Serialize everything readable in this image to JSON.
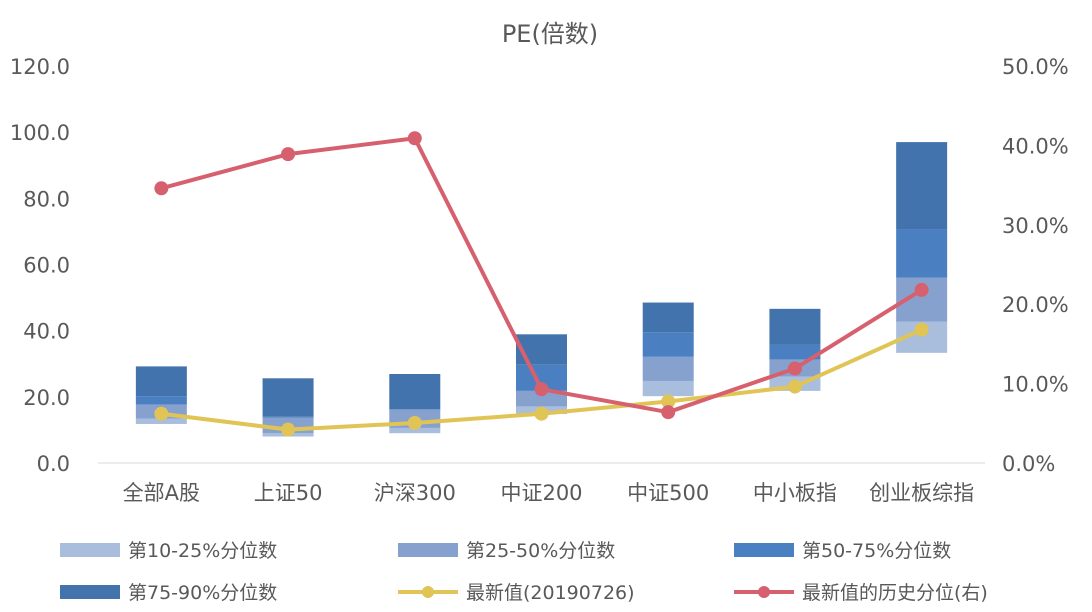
{
  "chart_data": {
    "type": "bar",
    "title": "PE(倍数)",
    "categories": [
      "全部A股",
      "上证50",
      "沪深300",
      "中证200",
      "中证500",
      "中小板指",
      "创业板综指"
    ],
    "y_left": {
      "min": 0,
      "max": 120,
      "step": 20,
      "ticks": [
        "0.0",
        "20.0",
        "40.0",
        "60.0",
        "80.0",
        "100.0",
        "120.0"
      ]
    },
    "y_right": {
      "min": 0,
      "max": 50,
      "step": 10,
      "ticks": [
        "0.0%",
        "10.0%",
        "20.0%",
        "30.0%",
        "40.0%",
        "50.0%"
      ]
    },
    "percentile_bands": {
      "p10": [
        11.8,
        8.0,
        9.0,
        14.8,
        20.2,
        21.8,
        33.3
      ],
      "p25": [
        13.4,
        9.0,
        10.6,
        17.1,
        24.8,
        26.1,
        42.7
      ],
      "p50": [
        17.7,
        13.7,
        16.1,
        21.8,
        32.1,
        31.3,
        56.0
      ],
      "p75": [
        20.2,
        14.0,
        16.3,
        29.7,
        39.5,
        35.7,
        70.6
      ],
      "p90": [
        29.2,
        25.6,
        26.9,
        38.9,
        48.5,
        46.6,
        97.0
      ]
    },
    "series": [
      {
        "name": "第10-25%分位数",
        "kind": "band",
        "color": "#A9BDDD"
      },
      {
        "name": "第25-50%分位数",
        "kind": "band",
        "color": "#87A1CE"
      },
      {
        "name": "第50-75%分位数",
        "kind": "band",
        "color": "#4A7FC1"
      },
      {
        "name": "第75-90%分位数",
        "kind": "band",
        "color": "#4373AC"
      },
      {
        "name": "最新值(20190726)",
        "kind": "line",
        "axis": "left",
        "color": "#E0C556",
        "values": [
          14.9,
          10.1,
          12.1,
          14.9,
          18.6,
          23.1,
          40.3
        ]
      },
      {
        "name": "最新值的历史分位(右)",
        "kind": "line",
        "axis": "right",
        "color": "#D6606E",
        "values": [
          34.6,
          38.9,
          40.9,
          9.3,
          6.4,
          11.9,
          21.8
        ]
      }
    ],
    "grid": false,
    "legend_position": "bottom"
  }
}
